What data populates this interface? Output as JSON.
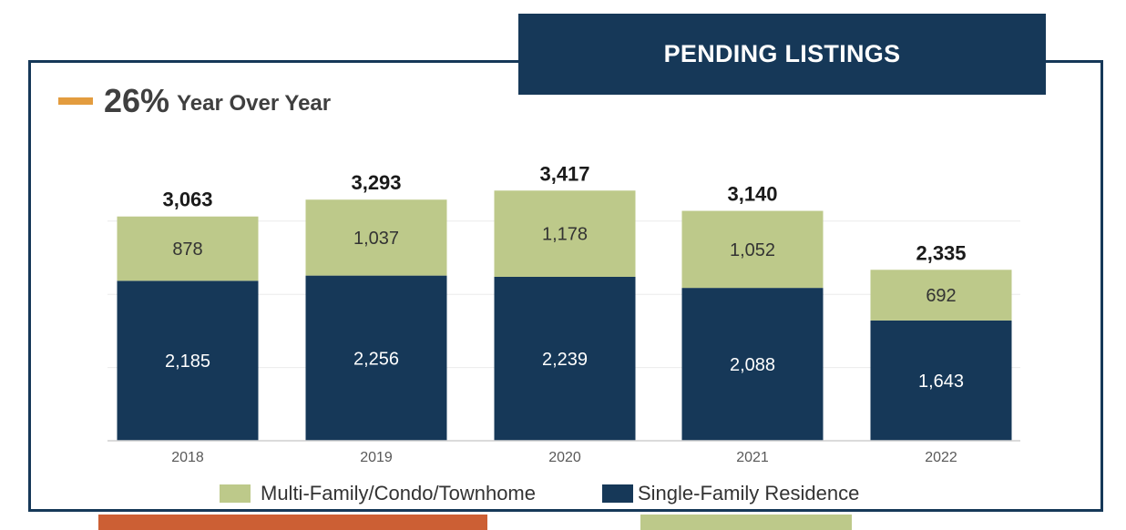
{
  "header": {
    "title": "PENDING LISTINGS"
  },
  "summary": {
    "percent": "26%",
    "label": "Year Over Year",
    "marker_color": "#e39c3f"
  },
  "colors": {
    "navy": "#163858",
    "green": "#bdc98a",
    "orange": "#cc5f34"
  },
  "chart_data": {
    "type": "bar",
    "stacked": true,
    "categories": [
      "2018",
      "2019",
      "2020",
      "2021",
      "2022"
    ],
    "series": [
      {
        "name": "Single-Family Residence",
        "color": "#163858",
        "values": [
          2185,
          2256,
          2239,
          2088,
          1643
        ],
        "labels": [
          "2,185",
          "2,256",
          "2,239",
          "2,088",
          "1,643"
        ]
      },
      {
        "name": "Multi-Family/Condo/Townhome",
        "color": "#bdc98a",
        "values": [
          878,
          1037,
          1178,
          1052,
          692
        ],
        "labels": [
          "878",
          "1,037",
          "1,178",
          "1,052",
          "692"
        ]
      }
    ],
    "totals": [
      3063,
      3293,
      3417,
      3140,
      2335
    ],
    "total_labels": [
      "3,063",
      "3,293",
      "3,417",
      "3,140",
      "2,335"
    ],
    "legend": [
      {
        "label": "Multi-Family/Condo/Townhome",
        "color": "#bdc98a"
      },
      {
        "label": "Single-Family Residence",
        "color": "#163858"
      }
    ],
    "legend_position": "bottom",
    "ylim": [
      0,
      3500
    ],
    "grid": true
  }
}
